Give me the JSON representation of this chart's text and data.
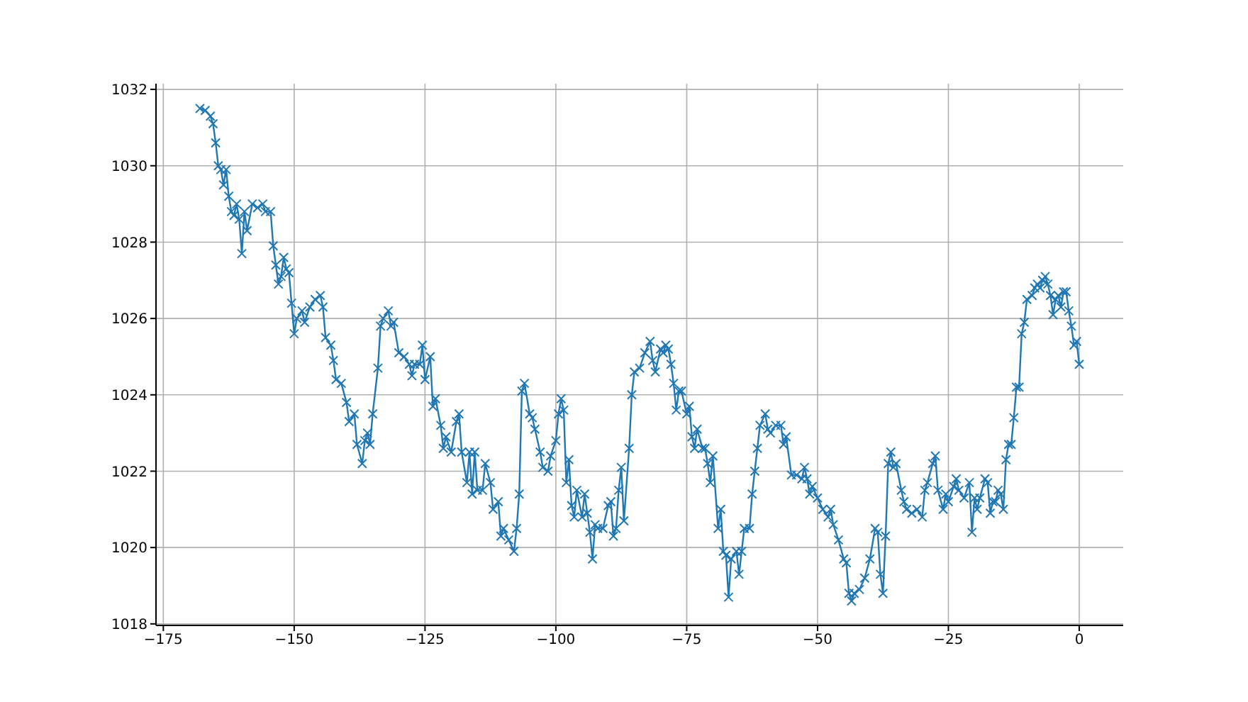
{
  "chart_data": {
    "type": "line",
    "x": [
      -168,
      -167,
      -166,
      -165.5,
      -165,
      -164.5,
      -164,
      -163.5,
      -163,
      -162.5,
      -162,
      -161.5,
      -161,
      -160.5,
      -160,
      -159.5,
      -159,
      -158,
      -157,
      -156,
      -155.5,
      -154.5,
      -154,
      -153.5,
      -153,
      -152.5,
      -152,
      -151.5,
      -151,
      -150.5,
      -150,
      -149.5,
      -148.5,
      -148,
      -147,
      -146,
      -145,
      -144.5,
      -144,
      -143,
      -142.5,
      -142,
      -141,
      -140,
      -139.5,
      -138.5,
      -138,
      -137,
      -136.5,
      -136,
      -135.5,
      -135,
      -134,
      -133.5,
      -133,
      -132,
      -131.5,
      -131,
      -130,
      -129,
      -128,
      -127.5,
      -127,
      -126,
      -125.5,
      -125,
      -124,
      -123.5,
      -123,
      -122,
      -121.5,
      -121,
      -120,
      -119,
      -118.5,
      -118,
      -117,
      -116.5,
      -116,
      -115.5,
      -115,
      -114,
      -113.5,
      -112.5,
      -112,
      -111,
      -110.5,
      -110,
      -109,
      -108,
      -107.5,
      -107,
      -106.5,
      -106,
      -105,
      -104.5,
      -104,
      -103,
      -102.5,
      -101.5,
      -101,
      -100,
      -99.5,
      -99,
      -98.5,
      -98,
      -97.5,
      -97,
      -96.5,
      -96,
      -95,
      -94.5,
      -94,
      -93.5,
      -93,
      -92.5,
      -92,
      -91,
      -90,
      -89.5,
      -89,
      -88.5,
      -88,
      -87.5,
      -87,
      -86,
      -85.5,
      -85,
      -84,
      -83,
      -82,
      -81.5,
      -81,
      -80,
      -79.5,
      -79,
      -78.5,
      -78,
      -77.5,
      -77,
      -76.5,
      -76,
      -75,
      -74.5,
      -74,
      -73.5,
      -73,
      -72,
      -71.5,
      -71,
      -70.5,
      -70,
      -69,
      -68.5,
      -68,
      -67.5,
      -67,
      -66.5,
      -65.5,
      -65,
      -64.5,
      -64,
      -63,
      -62.5,
      -62,
      -61.5,
      -61,
      -60,
      -59.5,
      -59,
      -58,
      -57,
      -56.5,
      -56,
      -55,
      -54,
      -53,
      -52.5,
      -52,
      -51.5,
      -51,
      -50,
      -49,
      -48,
      -47.5,
      -47,
      -46,
      -45,
      -44.5,
      -44,
      -43.5,
      -43,
      -42,
      -41,
      -40,
      -39,
      -38.5,
      -38,
      -37.5,
      -37,
      -36.5,
      -36,
      -35.5,
      -35,
      -34,
      -33.5,
      -33,
      -32,
      -31,
      -30,
      -29.5,
      -29,
      -28,
      -27.5,
      -27,
      -26,
      -25.5,
      -25,
      -24,
      -23.5,
      -23,
      -22,
      -21,
      -20.5,
      -20,
      -19.5,
      -19,
      -18,
      -17.5,
      -17,
      -16.5,
      -16,
      -15.5,
      -15,
      -14.5,
      -14,
      -13.5,
      -13,
      -12.5,
      -12,
      -11.5,
      -11,
      -10.5,
      -10,
      -9,
      -8.5,
      -8,
      -7.5,
      -7,
      -6.5,
      -6,
      -5.5,
      -5,
      -4.5,
      -4,
      -3.5,
      -3,
      -2.5,
      -2,
      -1.5,
      -1,
      -0.5,
      0
    ],
    "values": [
      1031.5,
      1031.45,
      1031.3,
      1031.1,
      1030.6,
      1030,
      1029.9,
      1029.5,
      1029.9,
      1029.2,
      1028.8,
      1028.7,
      1029,
      1028.6,
      1027.7,
      1028.8,
      1028.3,
      1029,
      1028.9,
      1029,
      1028.8,
      1028.8,
      1027.9,
      1027.4,
      1026.9,
      1027.1,
      1027.6,
      1027.3,
      1027.2,
      1026.4,
      1025.6,
      1026,
      1026.2,
      1025.9,
      1026.3,
      1026.5,
      1026.6,
      1026.3,
      1025.5,
      1025.3,
      1024.9,
      1024.4,
      1024.3,
      1023.8,
      1023.3,
      1023.5,
      1022.7,
      1022.2,
      1022.8,
      1023,
      1022.7,
      1023.5,
      1024.7,
      1025.8,
      1026,
      1026.2,
      1025.8,
      1025.9,
      1025.1,
      1025,
      1024.8,
      1024.5,
      1024.8,
      1024.8,
      1025.3,
      1024.4,
      1025,
      1023.7,
      1023.9,
      1023.2,
      1022.6,
      1022.9,
      1022.5,
      1023.3,
      1023.5,
      1022.5,
      1021.7,
      1022.5,
      1021.4,
      1022.5,
      1021.5,
      1021.5,
      1022.2,
      1021.7,
      1021,
      1021.2,
      1020.3,
      1020.5,
      1020.2,
      1019.9,
      1020.5,
      1021.4,
      1024.1,
      1024.3,
      1023.5,
      1023.4,
      1023.1,
      1022.5,
      1022.1,
      1022,
      1022.4,
      1022.8,
      1023.5,
      1023.9,
      1023.6,
      1021.7,
      1022.3,
      1021.1,
      1020.8,
      1021.5,
      1020.8,
      1021.4,
      1020.9,
      1020.4,
      1019.7,
      1020.6,
      1020.5,
      1020.5,
      1021.1,
      1021.2,
      1020.3,
      1020.5,
      1021.5,
      1022.1,
      1020.7,
      1022.6,
      1024,
      1024.6,
      1024.7,
      1025.1,
      1025.4,
      1024.9,
      1024.6,
      1025.2,
      1025.1,
      1025.3,
      1025.2,
      1024.8,
      1024.3,
      1023.6,
      1024.1,
      1024.1,
      1023.5,
      1023.7,
      1022.9,
      1022.6,
      1023.1,
      1022.6,
      1022.6,
      1022.2,
      1021.7,
      1022.4,
      1020.5,
      1021,
      1019.9,
      1019.8,
      1018.7,
      1019.7,
      1019.9,
      1019.3,
      1019.9,
      1020.5,
      1020.5,
      1021.4,
      1022,
      1022.6,
      1023.2,
      1023.5,
      1023.1,
      1023,
      1023.2,
      1023.2,
      1022.7,
      1022.9,
      1021.9,
      1021.9,
      1021.8,
      1022.1,
      1021.8,
      1021.4,
      1021.6,
      1021.3,
      1021,
      1020.8,
      1021,
      1020.6,
      1020.2,
      1019.7,
      1019.6,
      1018.8,
      1018.6,
      1018.8,
      1018.9,
      1019.2,
      1019.7,
      1020.5,
      1020.4,
      1019.3,
      1018.8,
      1020.3,
      1022.2,
      1022.5,
      1022.1,
      1022.2,
      1021.5,
      1021.2,
      1021,
      1020.9,
      1021,
      1020.8,
      1021.5,
      1021.7,
      1022.2,
      1022.4,
      1021.5,
      1021,
      1021.4,
      1021.2,
      1021.6,
      1021.8,
      1021.5,
      1021.3,
      1021.7,
      1020.4,
      1021.3,
      1021,
      1021.3,
      1021.8,
      1021.7,
      1020.9,
      1021.2,
      1021.2,
      1021.5,
      1021.4,
      1021,
      1022.3,
      1022.7,
      1022.7,
      1023.4,
      1024.2,
      1024.2,
      1025.6,
      1025.9,
      1026.5,
      1026.6,
      1026.8,
      1026.9,
      1026.8,
      1027,
      1027.1,
      1026.9,
      1026.6,
      1026.1,
      1026.5,
      1026.6,
      1026.3,
      1026.7,
      1026.7,
      1026.2,
      1025.8,
      1025.3,
      1025.4,
      1024.8
    ],
    "color": "#1f77b4",
    "marker": "cross",
    "line_style": "solid",
    "grid": true,
    "xlim": [
      -176.4,
      8.4
    ],
    "xticks": [
      {
        "value": -175,
        "label": "−175"
      },
      {
        "value": -150,
        "label": "−150"
      },
      {
        "value": -125,
        "label": "−125"
      },
      {
        "value": -100,
        "label": "−100"
      },
      {
        "value": -75,
        "label": "−75"
      },
      {
        "value": -50,
        "label": "−50"
      },
      {
        "value": -25,
        "label": "−25"
      },
      0
    ],
    "ylim": [
      1017.96,
      1032.15
    ],
    "yticks": [
      1018,
      1020,
      1022,
      1024,
      1026,
      1028,
      1030,
      1032
    ]
  }
}
